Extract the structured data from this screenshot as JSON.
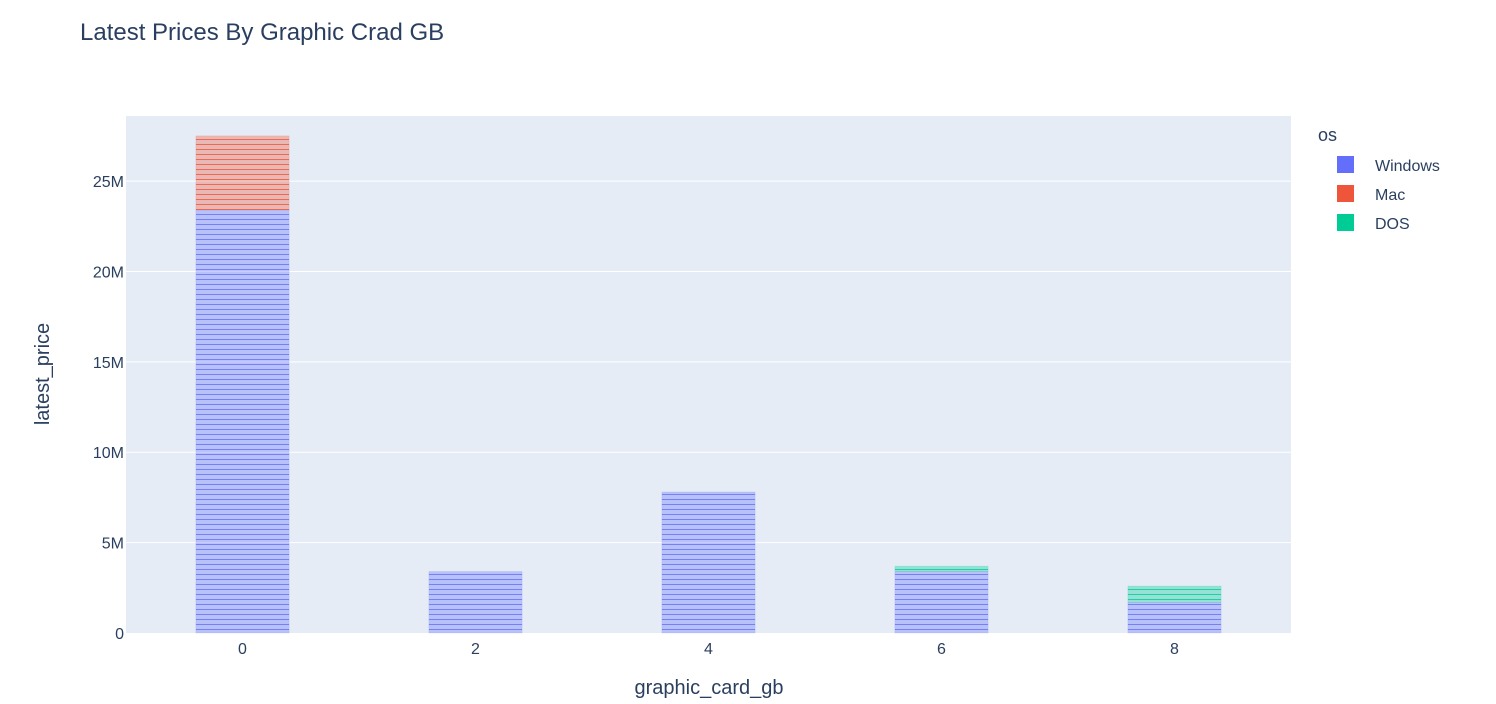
{
  "chart_data": {
    "type": "bar",
    "title": "Latest Prices By Graphic Crad GB",
    "xlabel": "graphic_card_gb",
    "ylabel": "latest_price",
    "categories": [
      "0",
      "2",
      "4",
      "6",
      "8"
    ],
    "x_ticks": [
      "0",
      "2",
      "4",
      "6",
      "8"
    ],
    "y_ticks": [
      {
        "value": 0,
        "label": "0"
      },
      {
        "value": 5000000,
        "label": "5M"
      },
      {
        "value": 10000000,
        "label": "10M"
      },
      {
        "value": 15000000,
        "label": "15M"
      },
      {
        "value": 20000000,
        "label": "20M"
      },
      {
        "value": 25000000,
        "label": "25M"
      }
    ],
    "ylim": [
      0,
      28600000
    ],
    "xlim": [
      -1,
      9
    ],
    "grid": true,
    "barmode": "stack",
    "legend": {
      "title": "os",
      "placement": "right"
    },
    "series": [
      {
        "name": "Windows",
        "color": "#636efa",
        "values": [
          23400000,
          3400000,
          7800000,
          3400000,
          1700000
        ]
      },
      {
        "name": "Mac",
        "color": "#ef553b",
        "values": [
          4100000,
          0,
          0,
          0,
          0
        ]
      },
      {
        "name": "DOS",
        "color": "#00cc96",
        "values": [
          0,
          0,
          0,
          300000,
          900000
        ]
      }
    ]
  }
}
